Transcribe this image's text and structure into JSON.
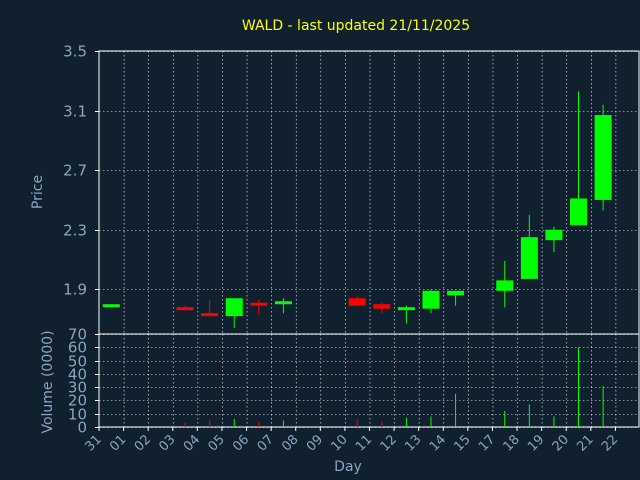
{
  "chart_data": [
    {
      "type": "candlestick",
      "title": "WALD - last updated 21/11/2025",
      "ylabel": "Price",
      "ylim": [
        1.6,
        3.5
      ],
      "yticks": [
        "3.5",
        "3.1",
        "2.7",
        "2.3",
        "1.9"
      ],
      "ytick_values": [
        3.5,
        3.1,
        2.7,
        2.3,
        1.9
      ],
      "grid": true,
      "colors": {
        "up": "#00ff00",
        "down": "#ff0000",
        "background": "#10202f",
        "grid": "#ffffff",
        "title": "#ffff00",
        "text": "#8aa6c0"
      },
      "categories": [
        "31",
        "01",
        "02",
        "03",
        "04",
        "05",
        "06",
        "07",
        "08",
        "09",
        "10",
        "11",
        "12",
        "13",
        "14",
        "15",
        "17",
        "18",
        "19",
        "20",
        "21",
        "22"
      ],
      "candles": [
        {
          "day": "31",
          "open": 1.79,
          "high": 1.8,
          "low": 1.78,
          "close": 1.8
        },
        {
          "day": "03",
          "open": 1.78,
          "high": 1.79,
          "low": 1.76,
          "close": 1.77
        },
        {
          "day": "04",
          "open": 1.74,
          "high": 1.83,
          "low": 1.72,
          "close": 1.72
        },
        {
          "day": "05",
          "open": 1.72,
          "high": 1.84,
          "low": 1.64,
          "close": 1.84
        },
        {
          "day": "06",
          "open": 1.81,
          "high": 1.83,
          "low": 1.73,
          "close": 1.8
        },
        {
          "day": "07",
          "open": 1.8,
          "high": 1.84,
          "low": 1.74,
          "close": 1.82
        },
        {
          "day": "10",
          "open": 1.84,
          "high": 1.85,
          "low": 1.79,
          "close": 1.79
        },
        {
          "day": "11",
          "open": 1.8,
          "high": 1.81,
          "low": 1.74,
          "close": 1.77
        },
        {
          "day": "12",
          "open": 1.76,
          "high": 1.79,
          "low": 1.67,
          "close": 1.78
        },
        {
          "day": "13",
          "open": 1.77,
          "high": 1.9,
          "low": 1.74,
          "close": 1.89
        },
        {
          "day": "14",
          "open": 1.86,
          "high": 1.89,
          "low": 1.79,
          "close": 1.89
        },
        {
          "day": "17",
          "open": 1.89,
          "high": 2.09,
          "low": 1.78,
          "close": 1.96
        },
        {
          "day": "18",
          "open": 1.97,
          "high": 2.4,
          "low": 1.97,
          "close": 2.25
        },
        {
          "day": "19",
          "open": 2.23,
          "high": 2.32,
          "low": 2.15,
          "close": 2.3
        },
        {
          "day": "20",
          "open": 2.33,
          "high": 3.23,
          "low": 2.33,
          "close": 2.51
        },
        {
          "day": "21",
          "open": 2.5,
          "high": 3.14,
          "low": 2.43,
          "close": 3.07
        }
      ]
    },
    {
      "type": "bar",
      "ylabel": "Volume (0000)",
      "xlabel": "Day",
      "ylim": [
        0,
        70
      ],
      "yticks": [
        "70",
        "60",
        "50",
        "40",
        "30",
        "20",
        "10",
        "0"
      ],
      "ytick_values": [
        70,
        60,
        50,
        40,
        30,
        20,
        10,
        0
      ],
      "grid": true,
      "categories": [
        "31",
        "01",
        "02",
        "03",
        "04",
        "05",
        "06",
        "07",
        "08",
        "09",
        "10",
        "11",
        "12",
        "13",
        "14",
        "15",
        "17",
        "18",
        "19",
        "20",
        "21",
        "22"
      ],
      "values": [
        {
          "day": "31",
          "value": 0.5,
          "up": true
        },
        {
          "day": "03",
          "value": 3,
          "up": false
        },
        {
          "day": "04",
          "value": 5,
          "up": false
        },
        {
          "day": "05",
          "value": 6,
          "up": true
        },
        {
          "day": "06",
          "value": 4,
          "up": false
        },
        {
          "day": "07",
          "value": 5,
          "up": true
        },
        {
          "day": "10",
          "value": 6,
          "up": false
        },
        {
          "day": "11",
          "value": 4,
          "up": false
        },
        {
          "day": "12",
          "value": 7,
          "up": true
        },
        {
          "day": "13",
          "value": 8,
          "up": true
        },
        {
          "day": "14",
          "value": 25,
          "up": true
        },
        {
          "day": "17",
          "value": 12,
          "up": true
        },
        {
          "day": "18",
          "value": 17,
          "up": true
        },
        {
          "day": "19",
          "value": 8,
          "up": true
        },
        {
          "day": "20",
          "value": 60,
          "up": true
        },
        {
          "day": "21",
          "value": 31,
          "up": true
        }
      ]
    }
  ]
}
